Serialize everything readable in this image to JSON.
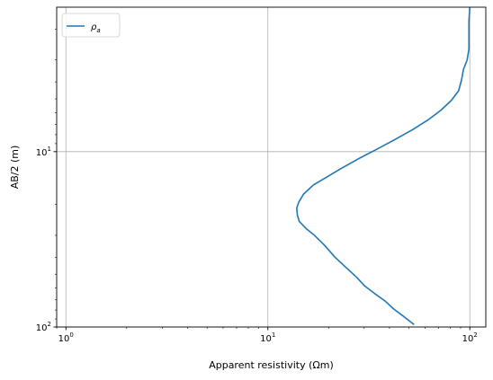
{
  "chart_data": {
    "type": "line",
    "xlabel": "Apparent resistivity (Ωm)",
    "ylabel": "AB/2 (m)",
    "xscale": "log",
    "yscale": "log",
    "y_inverted": true,
    "xlim": [
      0.9,
      120
    ],
    "ylim": [
      100,
      1.5
    ],
    "grid": true,
    "legend_position": "top-left",
    "x_ticks": [
      {
        "value": 1,
        "base": "10",
        "exp": "0"
      },
      {
        "value": 10,
        "base": "10",
        "exp": "1"
      },
      {
        "value": 100,
        "base": "10",
        "exp": "2"
      }
    ],
    "y_ticks": [
      {
        "value": 10,
        "base": "10",
        "exp": "1"
      },
      {
        "value": 100,
        "base": "10",
        "exp": "2"
      }
    ],
    "series": [
      {
        "name": "ρa",
        "name_main": "ρ",
        "name_sub": "a",
        "color": "#1f77b4",
        "points": [
          {
            "x": 100,
            "y": 1.5
          },
          {
            "x": 99,
            "y": 1.8
          },
          {
            "x": 99,
            "y": 2.2
          },
          {
            "x": 99,
            "y": 2.6
          },
          {
            "x": 97,
            "y": 3.0
          },
          {
            "x": 93,
            "y": 3.4
          },
          {
            "x": 91,
            "y": 3.9
          },
          {
            "x": 88,
            "y": 4.5
          },
          {
            "x": 81,
            "y": 5.1
          },
          {
            "x": 72,
            "y": 5.8
          },
          {
            "x": 62,
            "y": 6.6
          },
          {
            "x": 52,
            "y": 7.5
          },
          {
            "x": 42,
            "y": 8.6
          },
          {
            "x": 34,
            "y": 9.8
          },
          {
            "x": 28,
            "y": 11
          },
          {
            "x": 23,
            "y": 12.5
          },
          {
            "x": 19.5,
            "y": 14
          },
          {
            "x": 16.8,
            "y": 15.5
          },
          {
            "x": 15,
            "y": 17.5
          },
          {
            "x": 14.2,
            "y": 19.5
          },
          {
            "x": 13.9,
            "y": 21
          },
          {
            "x": 14,
            "y": 23
          },
          {
            "x": 14.3,
            "y": 25
          },
          {
            "x": 15.5,
            "y": 27.5
          },
          {
            "x": 17,
            "y": 30
          },
          {
            "x": 19,
            "y": 34
          },
          {
            "x": 21.5,
            "y": 40
          },
          {
            "x": 24.5,
            "y": 46
          },
          {
            "x": 27.5,
            "y": 52
          },
          {
            "x": 30,
            "y": 58
          },
          {
            "x": 33.5,
            "y": 64
          },
          {
            "x": 38,
            "y": 71
          },
          {
            "x": 42,
            "y": 79
          },
          {
            "x": 47,
            "y": 87
          },
          {
            "x": 53,
            "y": 97
          }
        ]
      }
    ]
  }
}
